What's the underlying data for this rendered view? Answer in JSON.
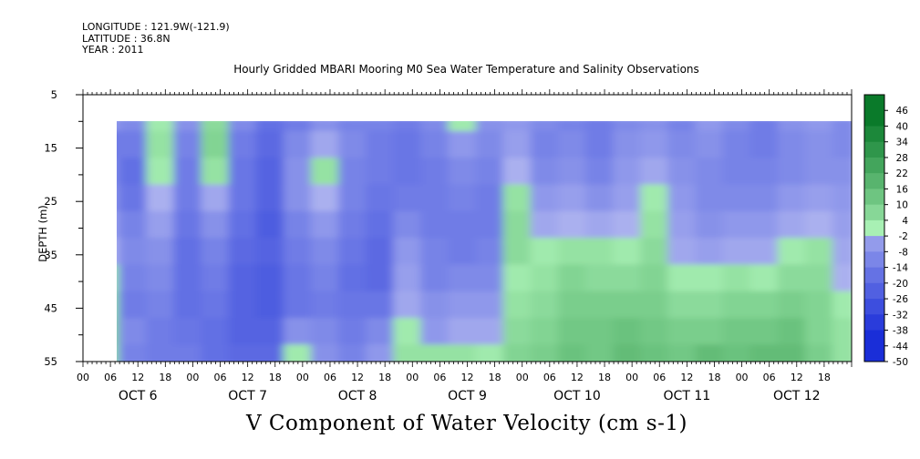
{
  "meta": {
    "longitude": "LONGITUDE : 121.9W(-121.9)",
    "latitude": "LATITUDE : 36.8N",
    "year": "YEAR : 2011"
  },
  "title": "Hourly Gridded MBARI Mooring M0 Sea Water Temperature and Salinity Observations",
  "bottom_label": "V Component of Water Velocity (cm s-1)",
  "chart_data": {
    "type": "heatmap",
    "title": "Hourly Gridded MBARI Mooring M0 Sea Water Temperature and Salinity Observations",
    "xlabel": "",
    "ylabel": "DEPTH (m)",
    "colorbar_label": "V Component of Water Velocity (cm s-1)",
    "ylim": [
      5,
      55
    ],
    "y_reversed": true,
    "y_ticks": [
      5,
      15,
      25,
      35,
      45,
      55
    ],
    "y_minor_ticks": [
      10,
      20,
      30,
      40,
      50
    ],
    "x_hour_ticks": [
      "00",
      "06",
      "12",
      "18"
    ],
    "x_days": [
      "OCT  6",
      "OCT  7",
      "OCT  8",
      "OCT  9",
      "OCT 10",
      "OCT 11",
      "OCT 12"
    ],
    "x_range_hours": [
      0,
      168
    ],
    "data_start_hour": 6,
    "data_depth_range": [
      10,
      55
    ],
    "colorbar_levels": [
      48,
      46,
      40,
      34,
      28,
      22,
      16,
      10,
      4,
      -2,
      -8,
      -14,
      -20,
      -26,
      -32,
      -38,
      -44,
      -50
    ],
    "colorbar_labels": [
      "46",
      "40",
      "34",
      "28",
      "22",
      "16",
      "10",
      "4",
      "-2",
      "-8",
      "-14",
      "-20",
      "-26",
      "-32",
      "-38",
      "-44",
      "-50"
    ],
    "grid": false,
    "palette": {
      "neg_light": "#b0b6f0",
      "neg_dark": "#1a2ed8",
      "pos_light": "#a8f0b4",
      "pos_dark": "#0a7a2a"
    },
    "time_hours": [
      6,
      12,
      18,
      24,
      30,
      36,
      42,
      48,
      54,
      60,
      66,
      72,
      78,
      84,
      90,
      96,
      102,
      108,
      114,
      120,
      126,
      132,
      138,
      144,
      150,
      156,
      162,
      168
    ],
    "depths": [
      10,
      15,
      20,
      25,
      30,
      35,
      40,
      45,
      50,
      55
    ],
    "values": [
      [
        -6,
        -14,
        -10,
        -8,
        -4,
        0,
        2,
        4,
        6,
        4
      ],
      [
        -10,
        -14,
        -18,
        -16,
        -12,
        -10,
        -12,
        -14,
        -10,
        -12
      ],
      [
        2,
        4,
        2,
        0,
        -4,
        -8,
        -10,
        -12,
        -14,
        -14
      ],
      [
        -8,
        -12,
        -14,
        -14,
        -16,
        -18,
        -18,
        -18,
        -16,
        -14
      ],
      [
        6,
        8,
        4,
        -2,
        -8,
        -12,
        -14,
        -16,
        -18,
        -18
      ],
      [
        -10,
        -14,
        -16,
        -16,
        -18,
        -20,
        -22,
        -22,
        -22,
        -20
      ],
      [
        -18,
        -20,
        -22,
        -22,
        -24,
        -22,
        -24,
        -24,
        -22,
        -20
      ],
      [
        -14,
        -10,
        -8,
        -8,
        -12,
        -14,
        -16,
        -16,
        -8,
        2
      ],
      [
        -8,
        -2,
        4,
        0,
        -6,
        -10,
        -12,
        -14,
        -10,
        -8
      ],
      [
        -12,
        -10,
        -12,
        -12,
        -14,
        -16,
        -18,
        -16,
        -14,
        -12
      ],
      [
        -12,
        -14,
        -14,
        -16,
        -18,
        -20,
        -20,
        -16,
        -10,
        -6
      ],
      [
        -14,
        -16,
        -16,
        -14,
        -10,
        -6,
        -4,
        -2,
        2,
        4
      ],
      [
        -10,
        -12,
        -14,
        -14,
        -14,
        -12,
        -12,
        -8,
        -6,
        4
      ],
      [
        2,
        -6,
        -10,
        -12,
        -14,
        -14,
        -10,
        -6,
        -2,
        4
      ],
      [
        -8,
        -10,
        -12,
        -14,
        -14,
        -12,
        -10,
        -6,
        -2,
        2
      ],
      [
        -6,
        -4,
        0,
        4,
        6,
        6,
        2,
        4,
        6,
        8
      ],
      [
        -10,
        -12,
        -10,
        -6,
        -2,
        2,
        4,
        6,
        8,
        10
      ],
      [
        -12,
        -10,
        -8,
        -4,
        0,
        4,
        8,
        10,
        12,
        14
      ],
      [
        -14,
        -14,
        -12,
        -8,
        -2,
        4,
        6,
        10,
        12,
        12
      ],
      [
        -10,
        -8,
        -6,
        -4,
        0,
        2,
        6,
        10,
        14,
        16
      ],
      [
        -8,
        -6,
        -2,
        2,
        4,
        6,
        8,
        10,
        12,
        14
      ],
      [
        -12,
        -10,
        -8,
        -6,
        -4,
        -2,
        2,
        6,
        10,
        12
      ],
      [
        -6,
        -8,
        -10,
        -10,
        -8,
        -4,
        2,
        6,
        10,
        16
      ],
      [
        -10,
        -12,
        -12,
        -10,
        -6,
        -2,
        4,
        8,
        12,
        14
      ],
      [
        -14,
        -14,
        -12,
        -10,
        -6,
        -2,
        2,
        8,
        12,
        16
      ],
      [
        -8,
        -10,
        -10,
        -6,
        -2,
        2,
        6,
        10,
        14,
        16
      ],
      [
        -6,
        -8,
        -8,
        -4,
        0,
        4,
        6,
        8,
        8,
        10
      ],
      [
        -10,
        -10,
        -8,
        -6,
        -4,
        -2,
        0,
        2,
        4,
        4
      ]
    ]
  }
}
